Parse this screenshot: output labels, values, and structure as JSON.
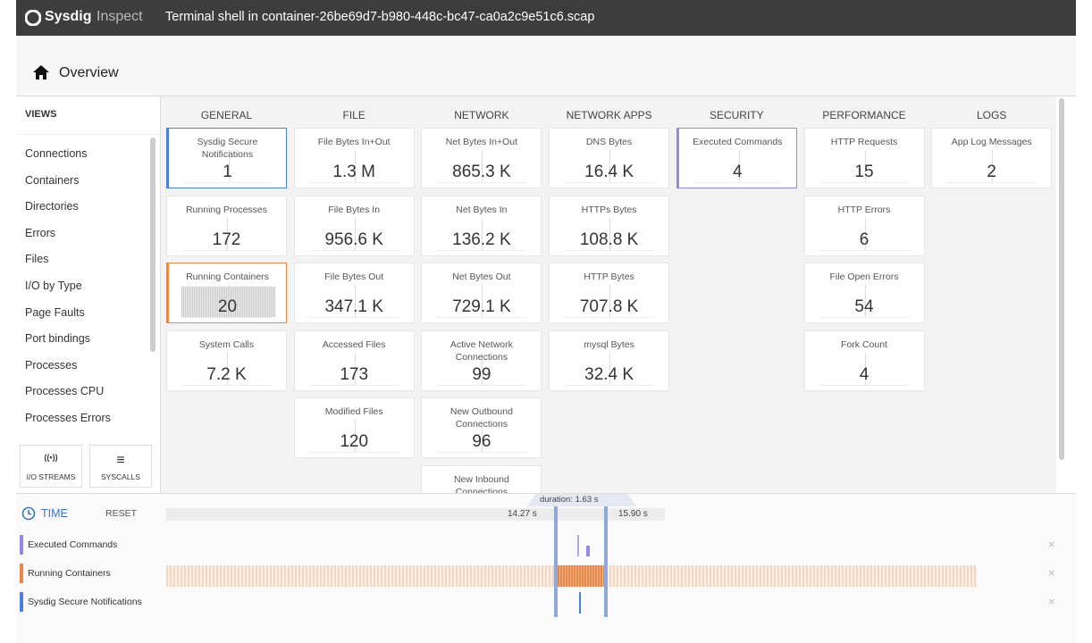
{
  "header": {
    "brand": "Sysdig",
    "brand_suffix": "Inspect",
    "file_title": "Terminal shell in container-26be69d7-b980-448c-bc47-ca0a2c9e51c6.scap"
  },
  "breadcrumb": "Overview",
  "sidebar": {
    "title": "VIEWS",
    "items": [
      "Connections",
      "Containers",
      "Directories",
      "Errors",
      "Files",
      "I/O by Type",
      "Page Faults",
      "Port bindings",
      "Processes",
      "Processes CPU",
      "Processes Errors"
    ],
    "buttons": [
      "I/O STREAMS",
      "SYSCALLS"
    ]
  },
  "columns": [
    {
      "title": "GENERAL",
      "tiles": [
        {
          "label": "Sysdig Secure Notifications",
          "value": "1",
          "accent": "#4a80dc"
        },
        {
          "label": "Running Processes",
          "value": "172"
        },
        {
          "label": "Running Containers",
          "value": "20",
          "accent": "#e8874a"
        },
        {
          "label": "System Calls",
          "value": "7.2 K"
        }
      ]
    },
    {
      "title": "FILE",
      "tiles": [
        {
          "label": "File Bytes In+Out",
          "value": "1.3 M"
        },
        {
          "label": "File Bytes In",
          "value": "956.6 K"
        },
        {
          "label": "File Bytes Out",
          "value": "347.1 K"
        },
        {
          "label": "Accessed Files",
          "value": "173"
        },
        {
          "label": "Modified Files",
          "value": "120"
        }
      ]
    },
    {
      "title": "NETWORK",
      "tiles": [
        {
          "label": "Net Bytes In+Out",
          "value": "865.3 K"
        },
        {
          "label": "Net Bytes In",
          "value": "136.2 K"
        },
        {
          "label": "Net Bytes Out",
          "value": "729.1 K"
        },
        {
          "label": "Active Network Connections",
          "value": "99"
        },
        {
          "label": "New Outbound Connections",
          "value": "96"
        },
        {
          "label": "New Inbound Connections"
        }
      ]
    },
    {
      "title": "NETWORK APPS",
      "tiles": [
        {
          "label": "DNS Bytes",
          "value": "16.4 K"
        },
        {
          "label": "HTTPs Bytes",
          "value": "108.8 K"
        },
        {
          "label": "HTTP Bytes",
          "value": "707.8 K"
        },
        {
          "label": "mysql Bytes",
          "value": "32.4 K"
        }
      ]
    },
    {
      "title": "SECURITY",
      "tiles": [
        {
          "label": "Executed Commands",
          "value": "4",
          "accent": "#9a86e6"
        }
      ]
    },
    {
      "title": "PERFORMANCE",
      "tiles": [
        {
          "label": "HTTP Requests",
          "value": "15"
        },
        {
          "label": "HTTP Errors",
          "value": "6"
        },
        {
          "label": "File Open Errors",
          "value": "54"
        },
        {
          "label": "Fork Count",
          "value": "4"
        }
      ]
    },
    {
      "title": "LOGS",
      "tiles": [
        {
          "label": "App Log Messages",
          "value": "2"
        }
      ]
    }
  ],
  "timeline": {
    "title": "TIME",
    "reset": "RESET",
    "duration": "duration: 1.63 s",
    "start": "14.27 s",
    "end": "15.90 s",
    "rows": [
      {
        "label": "Executed Commands",
        "color": "#9a86e6"
      },
      {
        "label": "Running Containers",
        "color": "#e8874a"
      },
      {
        "label": "Sysdig Secure Notifications",
        "color": "#4a80dc"
      }
    ]
  }
}
